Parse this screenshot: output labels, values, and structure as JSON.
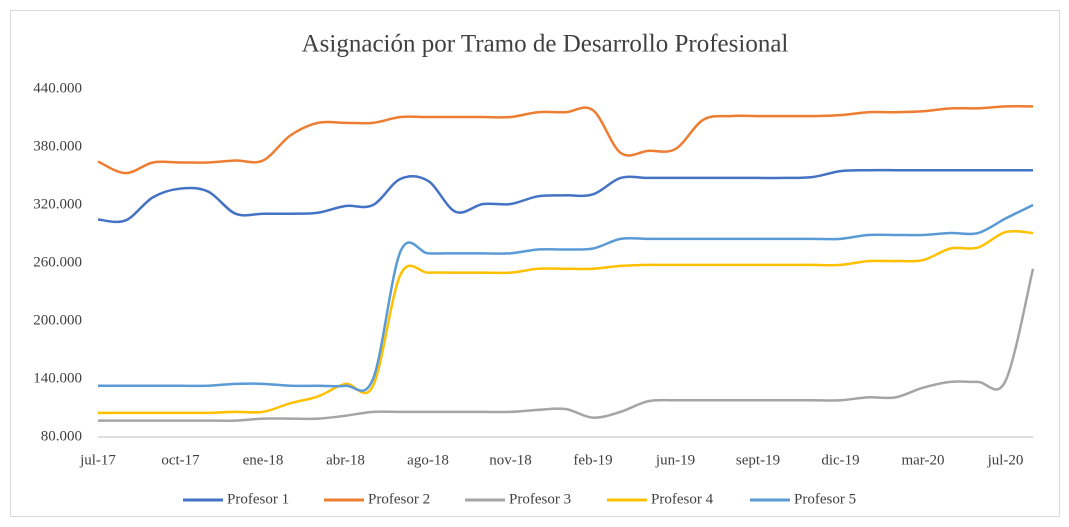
{
  "chart_data": {
    "type": "line",
    "title": "Asignación por Tramo de Desarrollo Profesional",
    "categories": [
      "jul-17",
      null,
      null,
      "oct-17",
      null,
      null,
      "ene-18",
      null,
      null,
      "abr-18",
      null,
      null,
      "ago-18",
      null,
      null,
      "nov-18",
      null,
      null,
      "feb-19",
      null,
      null,
      "jun-19",
      null,
      null,
      "sept-19",
      null,
      null,
      "dic-19",
      null,
      null,
      "mar-20",
      null,
      null,
      "jul-20",
      null
    ],
    "series": [
      {
        "name": "Profesor 1",
        "color": "#4472c4",
        "values": [
          305000,
          304000,
          328000,
          337000,
          334000,
          311000,
          311000,
          311000,
          312000,
          319000,
          320000,
          347000,
          345000,
          313000,
          321000,
          321000,
          329000,
          330000,
          331000,
          348000,
          348000,
          348000,
          348000,
          348000,
          348000,
          348000,
          349000,
          355000,
          356000,
          356000,
          356000,
          356000,
          356000,
          356000,
          356000
        ]
      },
      {
        "name": "Profesor 2",
        "color": "#ed7d31",
        "values": [
          365000,
          353000,
          364000,
          364000,
          364000,
          366000,
          366000,
          392000,
          405000,
          405000,
          405000,
          411000,
          411000,
          411000,
          411000,
          411000,
          416000,
          416000,
          418000,
          374000,
          376000,
          378000,
          408000,
          412000,
          412000,
          412000,
          412000,
          413000,
          416000,
          416000,
          417000,
          420000,
          420000,
          422000,
          422000
        ]
      },
      {
        "name": "Profesor 3",
        "color": "#a5a5a5",
        "values": [
          97000,
          97000,
          97000,
          97000,
          97000,
          97000,
          99000,
          99000,
          99000,
          102000,
          106000,
          106000,
          106000,
          106000,
          106000,
          106000,
          108000,
          109000,
          100000,
          106000,
          117000,
          118000,
          118000,
          118000,
          118000,
          118000,
          118000,
          118000,
          121000,
          121000,
          131000,
          137000,
          137000,
          138000,
          254000
        ]
      },
      {
        "name": "Profesor 4",
        "color": "#ffc000",
        "values": [
          105000,
          105000,
          105000,
          105000,
          105000,
          106000,
          106000,
          115000,
          122000,
          135000,
          133000,
          248000,
          250000,
          250000,
          250000,
          250000,
          254000,
          254000,
          254000,
          257000,
          258000,
          258000,
          258000,
          258000,
          258000,
          258000,
          258000,
          258000,
          262000,
          262000,
          263000,
          275000,
          276000,
          292000,
          291000
        ]
      },
      {
        "name": "Profesor 5",
        "color": "#5b9bd5",
        "values": [
          133000,
          133000,
          133000,
          133000,
          133000,
          135000,
          135000,
          133000,
          133000,
          133000,
          140000,
          272000,
          270000,
          270000,
          270000,
          270000,
          274000,
          274000,
          275000,
          285000,
          285000,
          285000,
          285000,
          285000,
          285000,
          285000,
          285000,
          285000,
          289000,
          289000,
          289000,
          291000,
          291000,
          306000,
          320000
        ]
      }
    ],
    "ylim": [
      80000,
      440000
    ],
    "yticks": [
      {
        "value": 80000,
        "label": "80.000"
      },
      {
        "value": 140000,
        "label": "140.000"
      },
      {
        "value": 200000,
        "label": "200.000"
      },
      {
        "value": 260000,
        "label": "260.000"
      },
      {
        "value": 320000,
        "label": "320.000"
      },
      {
        "value": 380000,
        "label": "380.000"
      },
      {
        "value": 440000,
        "label": "440.000"
      }
    ],
    "grid": false,
    "legend": "bottom"
  }
}
